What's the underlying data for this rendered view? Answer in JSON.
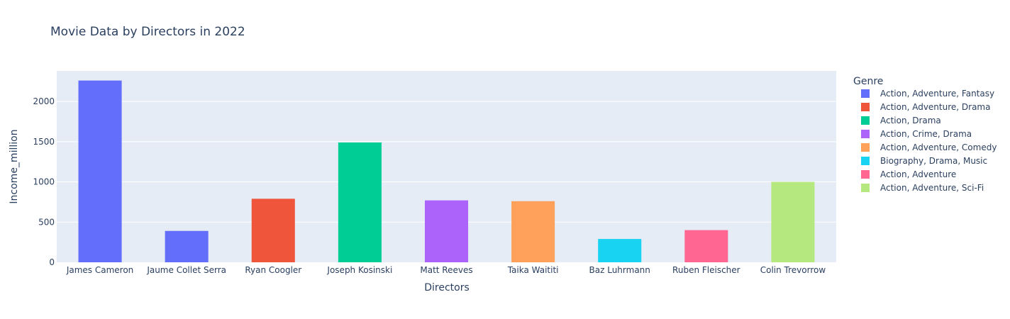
{
  "chart_data": {
    "type": "bar",
    "title": "Movie Data by Directors in 2022",
    "xlabel": "Directors",
    "ylabel": "Income_million",
    "ylim": [
      0,
      2380
    ],
    "yticks": [
      0,
      500,
      1000,
      1500,
      2000
    ],
    "categories": [
      "James Cameron",
      "Jaume Collet Serra",
      "Ryan Coogler",
      "Joseph Kosinski",
      "Matt Reeves",
      "Taika Waititi",
      "Baz Luhrmann",
      "Ruben Fleischer",
      "Colin Trevorrow"
    ],
    "values": [
      2260,
      390,
      790,
      1490,
      770,
      760,
      290,
      400,
      1000
    ],
    "bar_genre_index": [
      0,
      0,
      1,
      2,
      3,
      4,
      5,
      6,
      7
    ],
    "grid": true,
    "legend_placement": "right",
    "legend": {
      "title": "Genre",
      "entries": [
        {
          "label": "Action, Adventure, Fantasy",
          "color": "#636efa"
        },
        {
          "label": "Action, Adventure, Drama",
          "color": "#ef553b"
        },
        {
          "label": "Action, Drama",
          "color": "#00cc96"
        },
        {
          "label": "Action, Crime, Drama",
          "color": "#ab63fa"
        },
        {
          "label": "Action, Adventure, Comedy",
          "color": "#ffa15a"
        },
        {
          "label": "Biography, Drama, Music",
          "color": "#19d3f3"
        },
        {
          "label": "Action, Adventure",
          "color": "#ff6692"
        },
        {
          "label": "Action, Adventure, Sci-Fi",
          "color": "#b6e880"
        }
      ]
    },
    "plot_background": "#e5ecf6",
    "gridline_color": "#ffffff"
  }
}
